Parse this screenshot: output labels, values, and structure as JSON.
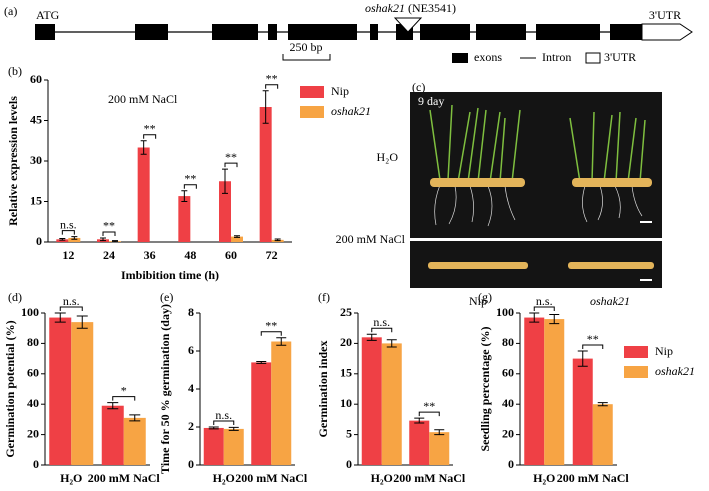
{
  "gene_diagram": {
    "label": "(a)",
    "start": "ATG",
    "end": "3'UTR",
    "mutant": "oshak21",
    "insertion": "(NE3541)",
    "scale": "250 bp",
    "legend": [
      "exons",
      "Intron",
      "3'UTR"
    ]
  },
  "photo": {
    "label": "(c)",
    "day": "9 day",
    "rows": [
      "H₂O",
      "200 mM NaCl"
    ],
    "columns": [
      "Nip",
      "oshak21"
    ]
  },
  "chart_data": [
    {
      "type": "bar",
      "label": "(b)",
      "subtitle": "200 mM NaCl",
      "y_label": "Relative expression levels",
      "x_label": "Imbibition time (h)",
      "categories": [
        "12",
        "24",
        "36",
        "48",
        "60",
        "72"
      ],
      "series": [
        {
          "name": "Nip",
          "color": "#ef4045",
          "values": [
            1,
            1,
            35,
            17,
            22.5,
            50
          ],
          "errors": [
            0.3,
            0.5,
            2.5,
            2,
            4.5,
            6
          ]
        },
        {
          "name": "oshak21",
          "color": "#f7a444",
          "values": [
            1.5,
            0.3,
            0,
            0,
            2,
            0.8
          ],
          "errors": [
            0.5,
            0.2,
            0,
            0,
            0.3,
            0.3
          ]
        }
      ],
      "significance": [
        "n.s.",
        "**",
        "**",
        "**",
        "**",
        "**"
      ],
      "ylim": [
        0,
        60
      ],
      "yticks": [
        0,
        15,
        30,
        45,
        60
      ],
      "legend": "upper right"
    },
    {
      "type": "bar",
      "label": "(d)",
      "y_label": "Germination potential (%)",
      "categories": [
        "H₂O",
        "200 mM NaCl"
      ],
      "series": [
        {
          "color": "#ef4045",
          "values": [
            97,
            39
          ],
          "errors": [
            3,
            2
          ]
        },
        {
          "color": "#f7a444",
          "values": [
            94,
            31
          ],
          "errors": [
            4,
            2
          ]
        }
      ],
      "significance": [
        "n.s.",
        "*"
      ],
      "ylim": [
        0,
        100
      ],
      "yticks": [
        0,
        20,
        40,
        60,
        80,
        100
      ]
    },
    {
      "type": "bar",
      "label": "(e)",
      "y_label": "Time for 50 % germination (day)",
      "categories": [
        "H₂O",
        "200 mM NaCl"
      ],
      "series": [
        {
          "color": "#ef4045",
          "values": [
            1.95,
            5.4
          ],
          "errors": [
            0.05,
            0.05
          ]
        },
        {
          "color": "#f7a444",
          "values": [
            1.9,
            6.5
          ],
          "errors": [
            0.08,
            0.2
          ]
        }
      ],
      "significance": [
        "n.s.",
        "**"
      ],
      "ylim": [
        0,
        8
      ],
      "yticks": [
        0,
        2,
        4,
        6,
        8
      ]
    },
    {
      "type": "bar",
      "label": "(f)",
      "y_label": "Germination index",
      "categories": [
        "H₂O",
        "200 mM NaCl"
      ],
      "series": [
        {
          "color": "#ef4045",
          "values": [
            21,
            7.3
          ],
          "errors": [
            0.5,
            0.4
          ]
        },
        {
          "color": "#f7a444",
          "values": [
            20,
            5.4
          ],
          "errors": [
            0.6,
            0.4
          ]
        }
      ],
      "significance": [
        "n.s.",
        "**"
      ],
      "ylim": [
        0,
        25
      ],
      "yticks": [
        0,
        5,
        10,
        15,
        20,
        25
      ]
    },
    {
      "type": "bar",
      "label": "(g)",
      "y_label": "Seedling percentage (%)",
      "categories": [
        "H₂O",
        "200 mM NaCl"
      ],
      "series": [
        {
          "name": "Nip",
          "color": "#ef4045",
          "values": [
            97,
            70
          ],
          "errors": [
            3,
            5
          ]
        },
        {
          "name": "oshak21",
          "color": "#f7a444",
          "values": [
            96,
            40
          ],
          "errors": [
            3,
            1
          ]
        }
      ],
      "significance": [
        "n.s.",
        "**"
      ],
      "ylim": [
        0,
        100
      ],
      "yticks": [
        0,
        20,
        40,
        60,
        80,
        100
      ],
      "legend": "right"
    }
  ]
}
